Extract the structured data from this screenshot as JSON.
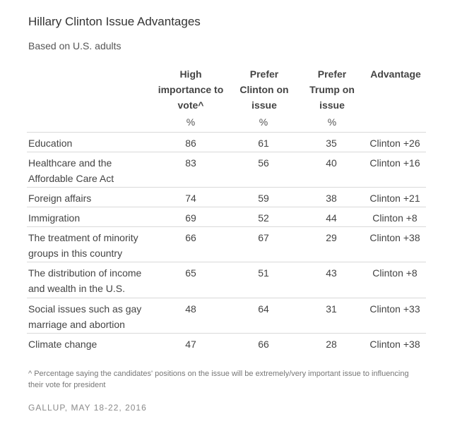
{
  "title": "Hillary Clinton Issue Advantages",
  "subtitle": "Based on U.S. adults",
  "columns": [
    {
      "label": "High\nimportance to\nvote^",
      "unit": "%"
    },
    {
      "label": "Prefer\nClinton on\nissue",
      "unit": "%"
    },
    {
      "label": "Prefer\nTrump on\nissue",
      "unit": "%"
    },
    {
      "label": "Advantage",
      "unit": ""
    }
  ],
  "chart_data": {
    "type": "table",
    "columns": [
      "High importance to vote^",
      "Prefer Clinton on issue",
      "Prefer Trump on issue",
      "Advantage"
    ],
    "units": [
      "%",
      "%",
      "%",
      ""
    ],
    "rows": [
      {
        "issue": "Education",
        "importance": 86,
        "clinton": 61,
        "trump": 35,
        "advantage": "Clinton +26"
      },
      {
        "issue": "Healthcare and the\nAffordable Care Act",
        "importance": 83,
        "clinton": 56,
        "trump": 40,
        "advantage": "Clinton +16"
      },
      {
        "issue": "Foreign affairs",
        "importance": 74,
        "clinton": 59,
        "trump": 38,
        "advantage": "Clinton +21"
      },
      {
        "issue": "Immigration",
        "importance": 69,
        "clinton": 52,
        "trump": 44,
        "advantage": "Clinton +8"
      },
      {
        "issue": "The treatment of minority\ngroups in this country",
        "importance": 66,
        "clinton": 67,
        "trump": 29,
        "advantage": "Clinton +38"
      },
      {
        "issue": "The distribution of income\nand wealth in the U.S.",
        "importance": 65,
        "clinton": 51,
        "trump": 43,
        "advantage": "Clinton +8"
      },
      {
        "issue": "Social issues such as gay\nmarriage and abortion",
        "importance": 48,
        "clinton": 64,
        "trump": 31,
        "advantage": "Clinton +33"
      },
      {
        "issue": "Climate change",
        "importance": 47,
        "clinton": 66,
        "trump": 28,
        "advantage": "Clinton +38"
      }
    ]
  },
  "footnote": "^ Percentage saying the candidates' positions on the issue will be extremely/very important issue to influencing their vote for president",
  "source": "GALLUP, MAY 18-22, 2016"
}
